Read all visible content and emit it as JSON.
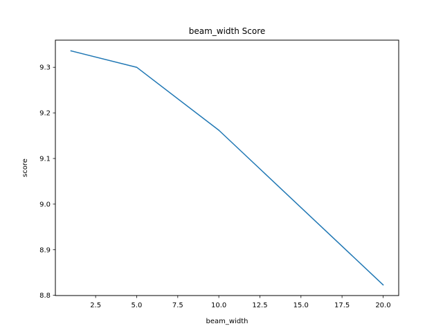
{
  "chart_data": {
    "type": "line",
    "title": "beam_width Score",
    "xlabel": "beam_width",
    "ylabel": "score",
    "x": [
      1,
      5,
      10,
      20
    ],
    "series": [
      {
        "values": [
          9.336,
          9.3,
          9.162,
          8.823
        ],
        "color": "#1f77b4"
      }
    ],
    "xlim": [
      0.05,
      20.95
    ],
    "ylim": [
      8.7995,
      9.3595
    ],
    "xticks": [
      2.5,
      5.0,
      7.5,
      10.0,
      12.5,
      15.0,
      17.5,
      20.0
    ],
    "xtick_labels": [
      "2.5",
      "5.0",
      "7.5",
      "10.0",
      "12.5",
      "15.0",
      "17.5",
      "20.0"
    ],
    "yticks": [
      8.8,
      8.9,
      9.0,
      9.1,
      9.2,
      9.3
    ],
    "ytick_labels": [
      "8.8",
      "8.9",
      "9.0",
      "9.1",
      "9.2",
      "9.3"
    ],
    "grid": false,
    "legend": false
  }
}
